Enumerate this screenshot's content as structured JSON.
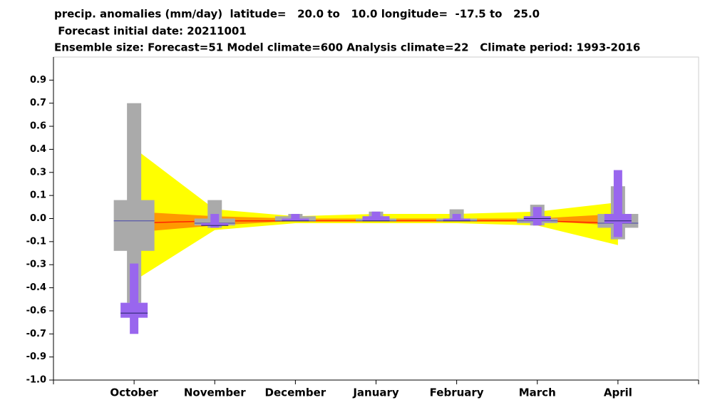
{
  "chart_data": {
    "type": "boxplume",
    "title_lines": [
      "precip. anomalies (mm/day)  latitude=   20.0 to   10.0 longitude=  -17.5 to   25.0",
      " Forecast initial date: 20211001",
      "Ensemble size: Forecast=51 Model climate=600 Analysis climate=22   Climate period: 1993-2016"
    ],
    "categories": [
      "October",
      "November",
      "December",
      "January",
      "February",
      "March",
      "April"
    ],
    "ylim": [
      -1.0,
      1.0
    ],
    "yticks": [
      {
        "value": -1,
        "label": "-1.0"
      },
      -0.9,
      -0.7,
      -0.6,
      -0.4,
      -0.3,
      -0.1,
      {
        "value": 0,
        "label": "0.0"
      },
      0.1,
      0.3,
      0.4,
      0.6,
      0.7,
      0.9
    ],
    "plume": {
      "outer_color": "#ffff00",
      "outer_low": [
        -0.37,
        -0.05,
        -0.02,
        -0.02,
        -0.02,
        -0.03,
        -0.13
      ],
      "outer_high": [
        0.41,
        0.04,
        0.01,
        0.02,
        0.02,
        0.03,
        0.07
      ],
      "inner_color": "#ff9900",
      "inner_low": [
        -0.06,
        -0.03,
        -0.01,
        -0.01,
        -0.01,
        -0.01,
        -0.03
      ],
      "inner_high": [
        0.03,
        0.01,
        0.0,
        0.0,
        0.0,
        0.0,
        0.02
      ],
      "median_color": "#ff2200",
      "median": [
        -0.02,
        -0.01,
        -0.01,
        -0.01,
        -0.01,
        -0.01,
        -0.02
      ]
    },
    "boxes": [
      {
        "color": "#aaaaaa",
        "min": [
          -0.53,
          -0.04,
          -0.01,
          -0.01,
          -0.01,
          -0.03,
          -0.09
        ],
        "q1": [
          -0.18,
          -0.03,
          -0.01,
          -0.01,
          -0.01,
          -0.02,
          -0.04
        ],
        "median": [
          -0.01,
          -0.02,
          -0.01,
          -0.01,
          -0.01,
          -0.01,
          -0.02
        ],
        "q3": [
          0.08,
          0.0,
          0.01,
          0.0,
          0.0,
          0.0,
          0.02
        ],
        "max": [
          0.7,
          0.08,
          0.02,
          0.03,
          0.04,
          0.06,
          0.18
        ]
      },
      {
        "color": "#9966ee",
        "min": [
          -0.7,
          -0.04,
          -0.01,
          -0.01,
          -0.01,
          -0.03,
          -0.08
        ],
        "q1": [
          -0.63,
          -0.03,
          -0.01,
          -0.01,
          -0.01,
          -0.01,
          -0.02
        ],
        "median": [
          -0.61,
          -0.03,
          -0.01,
          -0.01,
          -0.01,
          0.0,
          -0.01
        ],
        "q3": [
          -0.53,
          -0.02,
          0.0,
          0.01,
          0.0,
          0.01,
          0.02
        ],
        "max": [
          -0.29,
          0.02,
          0.02,
          0.03,
          0.02,
          0.05,
          0.31
        ]
      }
    ]
  }
}
